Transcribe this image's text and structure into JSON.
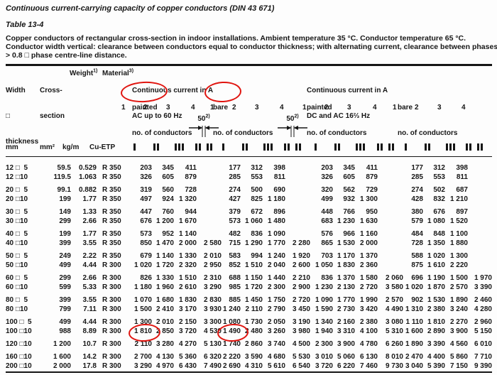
{
  "title": "Continuous current-carrying capacity of copper conductors (DIN 43 671)",
  "table_label": "Table 13-4",
  "description": [
    "Copper conductors of rectangular cross-section in indoor installations. Ambient temperature 35 °C. Conductor temperature 65 °C.",
    "Conductor width vertical: clearance between conductors equal to conductor thickness; with alternating current, clearance between phases",
    "> 0.8 □ phase centre-line distance."
  ],
  "columns": {
    "size": {
      "lines": [
        "Width",
        "□",
        "thickness"
      ],
      "unit": "mm"
    },
    "cross_section": {
      "lines": [
        "Cross-",
        "section"
      ],
      "unit": "mm²"
    },
    "weight": {
      "label": "Weight",
      "footnote": "1)",
      "unit": "kg/m"
    },
    "material": {
      "label": "Material",
      "footnote": "3)",
      "unit": "Cu-ETP"
    }
  },
  "groups": [
    {
      "title": "Continuous current in A",
      "subtitle": "AC up to 60 Hz",
      "sub": [
        {
          "label": "painted",
          "circled": true,
          "conductors_label": "no. of conductors",
          "cols": [
            "1",
            "2",
            "3",
            "4"
          ]
        },
        {
          "label": "bare",
          "circled": true,
          "conductors_label": "no. of conductors",
          "cols": [
            "1",
            "2",
            "3",
            "4"
          ]
        }
      ]
    },
    {
      "title": "Continuous current in A",
      "subtitle": "DC and AC 16⅔ Hz",
      "sub": [
        {
          "label": "painted",
          "circled": false,
          "conductors_label": "no. of conductors",
          "cols": [
            "1",
            "2",
            "3",
            "4"
          ]
        },
        {
          "label": "bare",
          "circled": false,
          "conductors_label": "no. of conductors",
          "cols": [
            "1",
            "2",
            "3",
            "4"
          ]
        }
      ]
    }
  ],
  "spacing_annotation": {
    "value": "50",
    "footnote": "2)"
  },
  "symbols": {
    "bars_per_column": [
      1,
      2,
      3,
      4
    ]
  },
  "annotation_color": "#e0140f",
  "circled_values": [
    "painted",
    "bare",
    "1 810",
    "1 490"
  ],
  "rows": [
    {
      "size": "12 □  5",
      "cross_section": "59.5",
      "weight": "0.529",
      "material": "R 350",
      "group_start": false,
      "ac_painted": [
        "203",
        "345",
        "411",
        ""
      ],
      "ac_bare": [
        "177",
        "312",
        "398",
        ""
      ],
      "dc_painted": [
        "203",
        "345",
        "411",
        ""
      ],
      "dc_bare": [
        "177",
        "312",
        "398",
        ""
      ]
    },
    {
      "size": "12 □10",
      "cross_section": "119.5",
      "weight": "1.063",
      "material": "R 350",
      "group_start": false,
      "ac_painted": [
        "326",
        "605",
        "879",
        ""
      ],
      "ac_bare": [
        "285",
        "553",
        "811",
        ""
      ],
      "dc_painted": [
        "326",
        "605",
        "879",
        ""
      ],
      "dc_bare": [
        "285",
        "553",
        "811",
        ""
      ]
    },
    {
      "size": "20 □  5",
      "cross_section": "99.1",
      "weight": "0.882",
      "material": "R 350",
      "group_start": true,
      "ac_painted": [
        "319",
        "560",
        "728",
        ""
      ],
      "ac_bare": [
        "274",
        "500",
        "690",
        ""
      ],
      "dc_painted": [
        "320",
        "562",
        "729",
        ""
      ],
      "dc_bare": [
        "274",
        "502",
        "687",
        ""
      ]
    },
    {
      "size": "20 □10",
      "cross_section": "199",
      "weight": "1.77",
      "material": "R 350",
      "group_start": false,
      "ac_painted": [
        "497",
        "924",
        "1 320",
        ""
      ],
      "ac_bare": [
        "427",
        "825",
        "1 180",
        ""
      ],
      "dc_painted": [
        "499",
        "932",
        "1 300",
        ""
      ],
      "dc_bare": [
        "428",
        "832",
        "1 210",
        ""
      ]
    },
    {
      "size": "30 □  5",
      "cross_section": "149",
      "weight": "1.33",
      "material": "R 350",
      "group_start": true,
      "ac_painted": [
        "447",
        "760",
        "944",
        ""
      ],
      "ac_bare": [
        "379",
        "672",
        "896",
        ""
      ],
      "dc_painted": [
        "448",
        "766",
        "950",
        ""
      ],
      "dc_bare": [
        "380",
        "676",
        "897",
        ""
      ]
    },
    {
      "size": "30 □10",
      "cross_section": "299",
      "weight": "2.66",
      "material": "R 350",
      "group_start": false,
      "ac_painted": [
        "676",
        "1 200",
        "1 670",
        ""
      ],
      "ac_bare": [
        "573",
        "1 060",
        "1 480",
        ""
      ],
      "dc_painted": [
        "683",
        "1 230",
        "1 630",
        ""
      ],
      "dc_bare": [
        "579",
        "1 080",
        "1 520",
        ""
      ]
    },
    {
      "size": "40 □  5",
      "cross_section": "199",
      "weight": "1.77",
      "material": "R 350",
      "group_start": true,
      "ac_painted": [
        "573",
        "952",
        "1 140",
        ""
      ],
      "ac_bare": [
        "482",
        "836",
        "1 090",
        ""
      ],
      "dc_painted": [
        "576",
        "966",
        "1 160",
        ""
      ],
      "dc_bare": [
        "484",
        "848",
        "1 100",
        ""
      ]
    },
    {
      "size": "40 □10",
      "cross_section": "399",
      "weight": "3.55",
      "material": "R 350",
      "group_start": false,
      "ac_painted": [
        "850",
        "1 470",
        "2 000",
        "2 580"
      ],
      "ac_bare": [
        "715",
        "1 290",
        "1 770",
        "2 280"
      ],
      "dc_painted": [
        "865",
        "1 530",
        "2 000",
        ""
      ],
      "dc_bare": [
        "728",
        "1 350",
        "1 880",
        ""
      ]
    },
    {
      "size": "50 □  5",
      "cross_section": "249",
      "weight": "2.22",
      "material": "R 350",
      "group_start": true,
      "ac_painted": [
        "679",
        "1 140",
        "1 330",
        "2 010"
      ],
      "ac_bare": [
        "583",
        "994",
        "1 240",
        "1 920"
      ],
      "dc_painted": [
        "703",
        "1 170",
        "1 370",
        ""
      ],
      "dc_bare": [
        "588",
        "1 020",
        "1 300",
        ""
      ]
    },
    {
      "size": "50 □10",
      "cross_section": "499",
      "weight": "4.44",
      "material": "R 300",
      "group_start": false,
      "ac_painted": [
        "1 020",
        "1 720",
        "2 320",
        "2 950"
      ],
      "ac_bare": [
        "852",
        "1 510",
        "2 040",
        "2 600"
      ],
      "dc_painted": [
        "1 050",
        "1 830",
        "2 360",
        ""
      ],
      "dc_bare": [
        "875",
        "1 610",
        "2 220",
        ""
      ]
    },
    {
      "size": "60 □  5",
      "cross_section": "299",
      "weight": "2.66",
      "material": "R 300",
      "group_start": true,
      "ac_painted": [
        "826",
        "1 330",
        "1 510",
        "2 310"
      ],
      "ac_bare": [
        "688",
        "1 150",
        "1 440",
        "2 210"
      ],
      "dc_painted": [
        "836",
        "1 370",
        "1 580",
        "2 060"
      ],
      "dc_bare": [
        "696",
        "1 190",
        "1 500",
        "1 970"
      ]
    },
    {
      "size": "60 □10",
      "cross_section": "599",
      "weight": "5.33",
      "material": "R 300",
      "group_start": false,
      "ac_painted": [
        "1 180",
        "1 960",
        "2 610",
        "3 290"
      ],
      "ac_bare": [
        "985",
        "1 720",
        "2 300",
        "2 900"
      ],
      "dc_painted": [
        "1 230",
        "2 130",
        "2 720",
        "3 580"
      ],
      "dc_bare": [
        "1 020",
        "1 870",
        "2 570",
        "3 390"
      ]
    },
    {
      "size": "80 □  5",
      "cross_section": "399",
      "weight": "3.55",
      "material": "R 300",
      "group_start": true,
      "ac_painted": [
        "1 070",
        "1 680",
        "1 830",
        "2 830"
      ],
      "ac_bare": [
        "885",
        "1 450",
        "1 750",
        "2 720"
      ],
      "dc_painted": [
        "1 090",
        "1 770",
        "1 990",
        "2 570"
      ],
      "dc_bare": [
        "902",
        "1 530",
        "1 890",
        "2 460"
      ]
    },
    {
      "size": "80 □10",
      "cross_section": "799",
      "weight": "7.11",
      "material": "R 300",
      "group_start": false,
      "ac_painted": [
        "1 500",
        "2 410",
        "3 170",
        "3 930"
      ],
      "ac_bare": [
        "1 240",
        "2 110",
        "2 790",
        "3 450"
      ],
      "dc_painted": [
        "1 590",
        "2 730",
        "3 420",
        "4 490"
      ],
      "dc_bare": [
        "1 310",
        "2 380",
        "3 240",
        "4 280"
      ]
    },
    {
      "size": "100 □  5",
      "cross_section": "499",
      "weight": "4.44",
      "material": "R 300",
      "group_start": true,
      "ac_painted": [
        "1 300",
        "2 010",
        "2 150",
        "3 300"
      ],
      "ac_bare": [
        "1 080",
        "1 730",
        "2 050",
        "3 190"
      ],
      "dc_painted": [
        "1 340",
        "2 160",
        "2 380",
        "3 080"
      ],
      "dc_bare": [
        "1 110",
        "1 810",
        "2 270",
        "2 960"
      ]
    },
    {
      "size": "100 □10",
      "cross_section": "988",
      "weight": "8.89",
      "material": "R 300",
      "group_start": false,
      "ac_painted": [
        "1 810",
        "2 850",
        "3 720",
        "4 530"
      ],
      "ac_bare": [
        "1 490",
        "2 480",
        "3 260",
        "3 980"
      ],
      "dc_painted": [
        "1 940",
        "3 310",
        "4 100",
        "5 310"
      ],
      "dc_bare": [
        "1 600",
        "2 890",
        "3 900",
        "5 150"
      ]
    },
    {
      "size": "120 □10",
      "cross_section": "1 200",
      "weight": "10.7",
      "material": "R 300",
      "group_start": true,
      "ac_painted": [
        "2 110",
        "3 280",
        "4 270",
        "5 130"
      ],
      "ac_bare": [
        "1 740",
        "2 860",
        "3 740",
        "4 500"
      ],
      "dc_painted": [
        "2 300",
        "3 900",
        "4 780",
        "6 260"
      ],
      "dc_bare": [
        "1 890",
        "3 390",
        "4 560",
        "6 010"
      ]
    },
    {
      "size": "160 □10",
      "cross_section": "1 600",
      "weight": "14.2",
      "material": "R 300",
      "group_start": true,
      "ac_painted": [
        "2 700",
        "4 130",
        "5 360",
        "6 320"
      ],
      "ac_bare": [
        "2 220",
        "3 590",
        "4 680",
        "5 530"
      ],
      "dc_painted": [
        "3 010",
        "5 060",
        "6 130",
        "8 010"
      ],
      "dc_bare": [
        "2 470",
        "4 400",
        "5 860",
        "7 710"
      ]
    },
    {
      "size": "200 □10",
      "cross_section": "2 000",
      "weight": "17.8",
      "material": "R 300",
      "group_start": false,
      "ac_painted": [
        "3 290",
        "4 970",
        "6 430",
        "7 490"
      ],
      "ac_bare": [
        "2 690",
        "4 310",
        "5 610",
        "6 540"
      ],
      "dc_painted": [
        "3 720",
        "6 220",
        "7 460",
        "9 730"
      ],
      "dc_bare": [
        "3 040",
        "5 390",
        "7 150",
        "9 390"
      ]
    }
  ]
}
